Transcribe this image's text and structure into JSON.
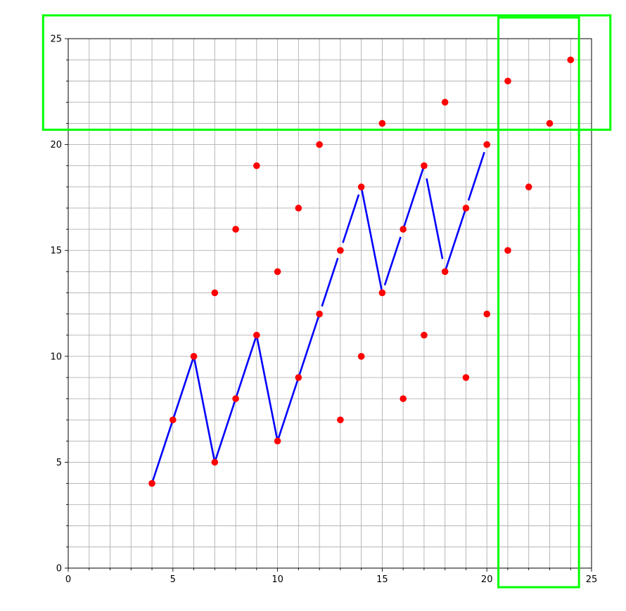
{
  "chart_data": {
    "type": "scatter",
    "title": "",
    "xlabel": "",
    "ylabel": "",
    "xlim": [
      0,
      25
    ],
    "ylim": [
      0,
      25
    ],
    "x_ticks": [
      0,
      5,
      10,
      15,
      20,
      25
    ],
    "y_ticks": [
      0,
      5,
      10,
      15,
      20,
      25
    ],
    "x_tick_labels": [
      "0",
      "5",
      "10",
      "15",
      "20",
      "25"
    ],
    "y_tick_labels": [
      "0",
      "5",
      "10",
      "15",
      "20",
      "25"
    ],
    "grid": true,
    "grid_step": 1,
    "colors": {
      "grid": "#b0b0b0",
      "line": "#0000ff",
      "points": "#ff0000",
      "highlight": "#00ff00"
    },
    "series": [
      {
        "kind": "line",
        "points": [
          [
            4,
            4
          ],
          [
            5,
            7
          ],
          [
            6,
            10
          ],
          [
            7,
            5
          ],
          [
            8,
            8
          ],
          [
            9,
            11
          ],
          [
            10,
            6
          ],
          [
            11,
            9
          ],
          [
            12,
            12
          ],
          [
            13,
            15
          ],
          [
            14,
            18
          ],
          [
            15,
            13
          ],
          [
            16,
            16
          ],
          [
            17,
            19
          ],
          [
            18,
            14
          ],
          [
            19,
            17
          ],
          [
            20,
            20
          ]
        ],
        "gaps": [
          [
            12,
            13
          ],
          [
            13,
            14
          ],
          [
            15,
            16
          ],
          [
            17,
            18
          ],
          [
            19,
            20
          ]
        ]
      },
      {
        "kind": "scatter",
        "points": [
          [
            4,
            4
          ],
          [
            5,
            7
          ],
          [
            6,
            10
          ],
          [
            7,
            5
          ],
          [
            7,
            13
          ],
          [
            8,
            8
          ],
          [
            8,
            16
          ],
          [
            9,
            11
          ],
          [
            9,
            19
          ],
          [
            10,
            6
          ],
          [
            10,
            14
          ],
          [
            11,
            9
          ],
          [
            11,
            17
          ],
          [
            12,
            12
          ],
          [
            12,
            20
          ],
          [
            13,
            7
          ],
          [
            13,
            15
          ],
          [
            14,
            10
          ],
          [
            14,
            18
          ],
          [
            15,
            13
          ],
          [
            15,
            21
          ],
          [
            16,
            8
          ],
          [
            16,
            16
          ],
          [
            17,
            11
          ],
          [
            17,
            19
          ],
          [
            18,
            14
          ],
          [
            18,
            22
          ],
          [
            19,
            9
          ],
          [
            19,
            17
          ],
          [
            20,
            12
          ],
          [
            20,
            20
          ],
          [
            21,
            15
          ],
          [
            21,
            23
          ],
          [
            22,
            18
          ],
          [
            23,
            21
          ],
          [
            24,
            24
          ]
        ]
      }
    ],
    "highlight_boxes": [
      {
        "x": [
          -1.2,
          25.9
        ],
        "y": [
          20.7,
          26.1
        ]
      },
      {
        "x": [
          20.55,
          24.4
        ],
        "y": [
          -0.9,
          26.0
        ]
      }
    ]
  }
}
